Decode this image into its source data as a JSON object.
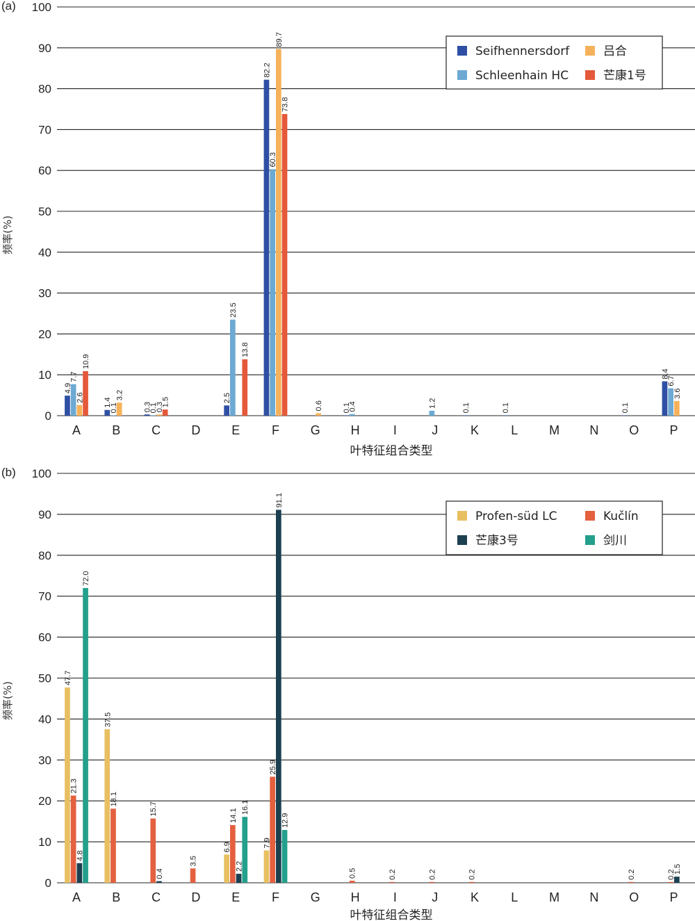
{
  "chart_data": [
    {
      "panel_label": "(a)",
      "type": "bar",
      "xlabel": "叶特征组合类型",
      "ylabel": "频率(%)",
      "ylim": [
        0,
        100
      ],
      "yticks": [
        0,
        10,
        20,
        30,
        40,
        50,
        60,
        70,
        80,
        90,
        100
      ],
      "grid": true,
      "legend_position": "top-right",
      "categories": [
        "A",
        "B",
        "C",
        "D",
        "E",
        "F",
        "G",
        "H",
        "I",
        "J",
        "K",
        "L",
        "M",
        "N",
        "O",
        "P"
      ],
      "series": [
        {
          "name": "Seifhennersdorf",
          "color": "#2e4fa3",
          "values": [
            4.9,
            1.4,
            0.3,
            null,
            2.5,
            82.2,
            null,
            0.1,
            null,
            null,
            0.1,
            0.1,
            null,
            null,
            0.1,
            8.4
          ]
        },
        {
          "name": "Schleenhain HC",
          "color": "#6ca9d3",
          "values": [
            7.7,
            0.1,
            0.1,
            null,
            23.5,
            60.3,
            null,
            0.4,
            null,
            1.2,
            null,
            null,
            null,
            null,
            null,
            6.7
          ]
        },
        {
          "name": "吕合",
          "color": "#f6b25a",
          "values": [
            2.6,
            3.2,
            0.3,
            null,
            null,
            89.7,
            0.6,
            null,
            null,
            null,
            null,
            null,
            null,
            null,
            null,
            3.6
          ]
        },
        {
          "name": "芒康1号",
          "color": "#e4593a",
          "values": [
            10.9,
            null,
            1.5,
            null,
            13.8,
            73.8,
            null,
            null,
            null,
            null,
            null,
            null,
            null,
            null,
            null,
            null
          ]
        }
      ]
    },
    {
      "panel_label": "(b)",
      "type": "bar",
      "xlabel": "叶特征组合类型",
      "ylabel": "频率(%)",
      "ylim": [
        0,
        100
      ],
      "yticks": [
        0,
        10,
        20,
        30,
        40,
        50,
        60,
        70,
        80,
        90,
        100
      ],
      "grid": true,
      "legend_position": "top-right",
      "categories": [
        "A",
        "B",
        "C",
        "D",
        "E",
        "F",
        "G",
        "H",
        "I",
        "J",
        "K",
        "L",
        "M",
        "N",
        "O",
        "P"
      ],
      "series": [
        {
          "name": "Profen-süd LC",
          "color": "#e8c062",
          "values": [
            47.7,
            37.5,
            null,
            null,
            6.9,
            7.9,
            null,
            null,
            null,
            null,
            null,
            null,
            null,
            null,
            null,
            null
          ]
        },
        {
          "name": "Kučlín",
          "color": "#e4603f",
          "values": [
            21.3,
            18.1,
            15.7,
            3.5,
            14.1,
            25.9,
            null,
            0.5,
            0.2,
            0.2,
            0.2,
            null,
            null,
            null,
            0.2,
            0.2
          ]
        },
        {
          "name": "芒康3号",
          "color": "#1c4050",
          "values": [
            4.8,
            null,
            0.4,
            null,
            2.2,
            91.1,
            null,
            null,
            null,
            null,
            null,
            null,
            null,
            null,
            null,
            1.5
          ]
        },
        {
          "name": "剑川",
          "color": "#23a08c",
          "values": [
            72.0,
            null,
            null,
            null,
            16.1,
            12.9,
            null,
            null,
            null,
            null,
            null,
            null,
            null,
            null,
            null,
            null
          ]
        }
      ]
    }
  ]
}
